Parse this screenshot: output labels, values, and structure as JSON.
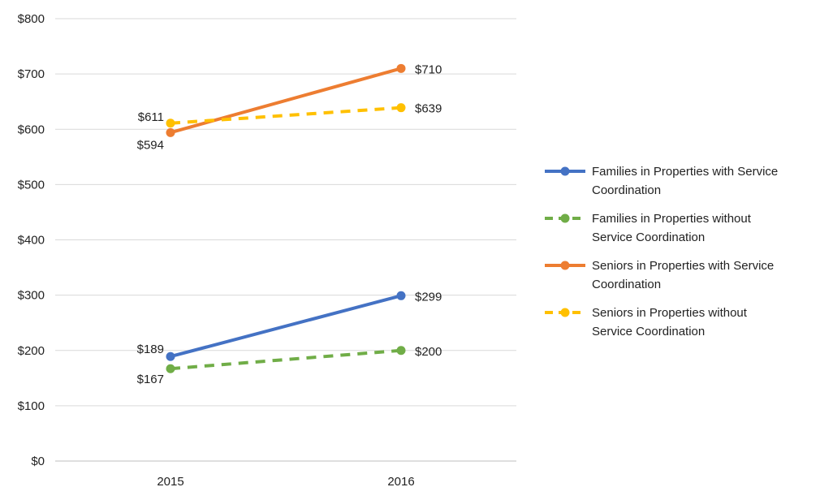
{
  "chart_data": {
    "type": "line",
    "categories": [
      "2015",
      "2016"
    ],
    "ylim": [
      0,
      800
    ],
    "yticks": [
      0,
      100,
      200,
      300,
      400,
      500,
      600,
      700,
      800
    ],
    "ytick_labels": [
      "$0",
      "$100",
      "$200",
      "$300",
      "$400",
      "$500",
      "$600",
      "$700",
      "$800"
    ],
    "grid": true,
    "legend_position": "right",
    "series": [
      {
        "name_lines": [
          "Families in Properties with Service",
          "Coordination"
        ],
        "values": [
          189,
          299
        ],
        "labels": [
          "$189",
          "$299"
        ],
        "color": "#4472C4",
        "dashed": false
      },
      {
        "name_lines": [
          "Families in Properties without",
          "Service Coordination"
        ],
        "values": [
          167,
          200
        ],
        "labels": [
          "$167",
          "$200"
        ],
        "color": "#70AD47",
        "dashed": true
      },
      {
        "name_lines": [
          "Seniors in Properties with Service",
          "Coordination"
        ],
        "values": [
          594,
          710
        ],
        "labels": [
          "$594",
          "$710"
        ],
        "color": "#ED7D31",
        "dashed": false
      },
      {
        "name_lines": [
          "Seniors in Properties without",
          "Service Coordination"
        ],
        "values": [
          611,
          639
        ],
        "labels": [
          "$611",
          "$639"
        ],
        "color": "#FFC000",
        "dashed": true
      }
    ]
  }
}
